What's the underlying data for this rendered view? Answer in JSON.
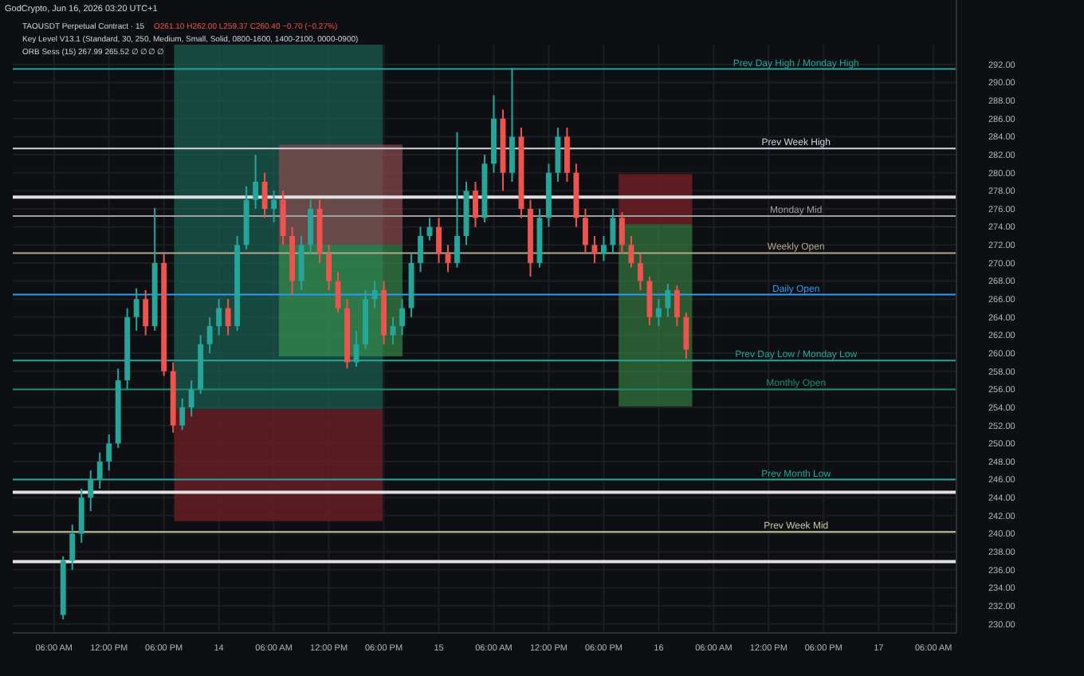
{
  "chart_data": {
    "type": "candlestick",
    "title": "TAOUSDT Perpetual Contract · 15",
    "subtitle": "GodCrypto, Jun 16, 2026 03:20 UTC+1",
    "annotations": [
      "O261.10 H262.00 L259.37 C260.40 −0.70 (−0.27%)",
      "Key Level V13.1 (Standard, 30, 250, Medium, Small, Solid, 0800-1600, 1400-2100, 0000-0900)",
      "ORB Sess (15) 267.99 265.52 ∅ ∅ ∅ ∅"
    ],
    "x": [
      "2026-06-13T07:00",
      "2026-06-13T08:00",
      "2026-06-13T09:00",
      "2026-06-13T10:00",
      "2026-06-13T11:00",
      "2026-06-13T12:00",
      "2026-06-13T13:00",
      "2026-06-13T14:00",
      "2026-06-13T15:00",
      "2026-06-13T16:00",
      "2026-06-13T17:00",
      "2026-06-13T18:00",
      "2026-06-13T19:00",
      "2026-06-13T20:00",
      "2026-06-13T21:00",
      "2026-06-13T22:00",
      "2026-06-13T23:00",
      "2026-06-14T00:00",
      "2026-06-14T01:00",
      "2026-06-14T02:00",
      "2026-06-14T03:00",
      "2026-06-14T04:00",
      "2026-06-14T05:00",
      "2026-06-14T06:00",
      "2026-06-14T07:00",
      "2026-06-14T08:00",
      "2026-06-14T09:00",
      "2026-06-14T10:00",
      "2026-06-14T11:00",
      "2026-06-14T12:00",
      "2026-06-14T13:00",
      "2026-06-14T14:00",
      "2026-06-14T15:00",
      "2026-06-14T16:00",
      "2026-06-14T17:00",
      "2026-06-14T18:00",
      "2026-06-14T19:00",
      "2026-06-14T20:00",
      "2026-06-14T21:00",
      "2026-06-14T22:00",
      "2026-06-14T23:00",
      "2026-06-15T00:00",
      "2026-06-15T01:00",
      "2026-06-15T02:00",
      "2026-06-15T03:00",
      "2026-06-15T04:00",
      "2026-06-15T05:00",
      "2026-06-15T06:00",
      "2026-06-15T07:00",
      "2026-06-15T08:00",
      "2026-06-15T09:00",
      "2026-06-15T10:00",
      "2026-06-15T11:00",
      "2026-06-15T12:00",
      "2026-06-15T13:00",
      "2026-06-15T14:00",
      "2026-06-15T15:00",
      "2026-06-15T16:00",
      "2026-06-15T17:00",
      "2026-06-15T18:00",
      "2026-06-15T19:00",
      "2026-06-15T20:00",
      "2026-06-15T21:00",
      "2026-06-15T22:00",
      "2026-06-15T23:00",
      "2026-06-16T00:00",
      "2026-06-16T01:00",
      "2026-06-16T02:00",
      "2026-06-16T03:00"
    ],
    "ohlc": [
      [
        231,
        237.5,
        230.5,
        237
      ],
      [
        237,
        241,
        236,
        240
      ],
      [
        240,
        245,
        239,
        244
      ],
      [
        244,
        247,
        242.5,
        246
      ],
      [
        246,
        249,
        245,
        248
      ],
      [
        248,
        251,
        247,
        250
      ],
      [
        250,
        258.3,
        249.5,
        257
      ],
      [
        257,
        265,
        256,
        264
      ],
      [
        264,
        267.2,
        262.5,
        266
      ],
      [
        266,
        267,
        262,
        263
      ],
      [
        263,
        276.1,
        262.5,
        270
      ],
      [
        270,
        271,
        257.5,
        258
      ],
      [
        258,
        259,
        251.2,
        252
      ],
      [
        252,
        255,
        251.5,
        254
      ],
      [
        254,
        257,
        253,
        256
      ],
      [
        256,
        262,
        255.5,
        261
      ],
      [
        261,
        264,
        260,
        263
      ],
      [
        263,
        266,
        262,
        265
      ],
      [
        265,
        266,
        262,
        263
      ],
      [
        263,
        273,
        262.5,
        272
      ],
      [
        272,
        278.5,
        271.5,
        277
      ],
      [
        277,
        282,
        276,
        279
      ],
      [
        279,
        280,
        275,
        276
      ],
      [
        276,
        278,
        274.5,
        277
      ],
      [
        277,
        278,
        272,
        273
      ],
      [
        273,
        274,
        266.5,
        268
      ],
      [
        268,
        273,
        267,
        272
      ],
      [
        272,
        277,
        271,
        276
      ],
      [
        276,
        277,
        270,
        271
      ],
      [
        271,
        272,
        267,
        268
      ],
      [
        268,
        269,
        264.5,
        265
      ],
      [
        265,
        266,
        258.3,
        259
      ],
      [
        259,
        262.5,
        258.5,
        261
      ],
      [
        261,
        267,
        260.5,
        266
      ],
      [
        266,
        268,
        265,
        267
      ],
      [
        267,
        268,
        261,
        262
      ],
      [
        262,
        264,
        261,
        263
      ],
      [
        263,
        266,
        262,
        265
      ],
      [
        265,
        271,
        264,
        270
      ],
      [
        270,
        274,
        269,
        273
      ],
      [
        273,
        275,
        272.5,
        274
      ],
      [
        274,
        275,
        270,
        271
      ],
      [
        271,
        272,
        269,
        270
      ],
      [
        270,
        284.5,
        269.5,
        273
      ],
      [
        273,
        279,
        272,
        278
      ],
      [
        278,
        279,
        274,
        275
      ],
      [
        275,
        282,
        274.5,
        281
      ],
      [
        281,
        288.6,
        280,
        286
      ],
      [
        286,
        287,
        278,
        280
      ],
      [
        280,
        291.6,
        279,
        284
      ],
      [
        284,
        285,
        275,
        276
      ],
      [
        276,
        277,
        268.5,
        270
      ],
      [
        270,
        276,
        269.5,
        275
      ],
      [
        275,
        281,
        274,
        280
      ],
      [
        280,
        285,
        279,
        284
      ],
      [
        284,
        285,
        279,
        280
      ],
      [
        280,
        281,
        274,
        275
      ],
      [
        275,
        276,
        271,
        272
      ],
      [
        272,
        273,
        270,
        271
      ],
      [
        271,
        273,
        270.2,
        272
      ],
      [
        272,
        276,
        271,
        275
      ],
      [
        275,
        275.6,
        271,
        272
      ],
      [
        272,
        273,
        269.5,
        270
      ],
      [
        270,
        271,
        267,
        268
      ],
      [
        268,
        268.5,
        263.1,
        264
      ],
      [
        264,
        266,
        263,
        265
      ],
      [
        265,
        267.7,
        264,
        267
      ],
      [
        267,
        267.5,
        263,
        264
      ],
      [
        264,
        264.5,
        259.4,
        260.4
      ]
    ],
    "xlim": [
      "2026-06-13T01:30",
      "2026-06-17T08:30"
    ],
    "xticks": [
      {
        "value": "2026-06-13T06:00",
        "label": "06:00 AM"
      },
      {
        "value": "2026-06-13T12:00",
        "label": "12:00 PM"
      },
      {
        "value": "2026-06-13T18:00",
        "label": "06:00 PM"
      },
      {
        "value": "2026-06-14T00:00",
        "label": "14"
      },
      {
        "value": "2026-06-14T06:00",
        "label": "06:00 AM"
      },
      {
        "value": "2026-06-14T12:00",
        "label": "12:00 PM"
      },
      {
        "value": "2026-06-14T18:00",
        "label": "06:00 PM"
      },
      {
        "value": "2026-06-15T00:00",
        "label": "15"
      },
      {
        "value": "2026-06-15T06:00",
        "label": "06:00 AM"
      },
      {
        "value": "2026-06-15T12:00",
        "label": "12:00 PM"
      },
      {
        "value": "2026-06-15T18:00",
        "label": "06:00 PM"
      },
      {
        "value": "2026-06-16T00:00",
        "label": "16"
      },
      {
        "value": "2026-06-16T06:00",
        "label": "06:00 AM"
      },
      {
        "value": "2026-06-16T12:00",
        "label": "12:00 PM"
      },
      {
        "value": "2026-06-16T18:00",
        "label": "06:00 PM"
      },
      {
        "value": "2026-06-17T00:00",
        "label": "17"
      },
      {
        "value": "2026-06-17T06:00",
        "label": "06:00 AM"
      }
    ],
    "ylim": [
      229,
      294.2
    ],
    "yticks": [
      {
        "value": 230,
        "label": "230.00"
      },
      {
        "value": 232,
        "label": "232.00"
      },
      {
        "value": 234,
        "label": "234.00"
      },
      {
        "value": 236,
        "label": "236.00"
      },
      {
        "value": 238,
        "label": "238.00"
      },
      {
        "value": 240,
        "label": "240.00"
      },
      {
        "value": 242,
        "label": "242.00"
      },
      {
        "value": 244,
        "label": "244.00"
      },
      {
        "value": 246,
        "label": "246.00"
      },
      {
        "value": 248,
        "label": "248.00"
      },
      {
        "value": 250,
        "label": "250.00"
      },
      {
        "value": 252,
        "label": "252.00"
      },
      {
        "value": 254,
        "label": "254.00"
      },
      {
        "value": 256,
        "label": "256.00"
      },
      {
        "value": 258,
        "label": "258.00"
      },
      {
        "value": 260,
        "label": "260.00"
      },
      {
        "value": 262,
        "label": "262.00"
      },
      {
        "value": 264,
        "label": "264.00"
      },
      {
        "value": 266,
        "label": "266.00"
      },
      {
        "value": 268,
        "label": "268.00"
      },
      {
        "value": 270,
        "label": "270.00"
      },
      {
        "value": 272,
        "label": "272.00"
      },
      {
        "value": 274,
        "label": "274.00"
      },
      {
        "value": 276,
        "label": "276.00"
      },
      {
        "value": 278,
        "label": "278.00"
      },
      {
        "value": 280,
        "label": "280.00"
      },
      {
        "value": 282,
        "label": "282.00"
      },
      {
        "value": 284,
        "label": "284.00"
      },
      {
        "value": 286,
        "label": "286.00"
      },
      {
        "value": 288,
        "label": "288.00"
      },
      {
        "value": 290,
        "label": "290.00"
      },
      {
        "value": 292,
        "label": "292.00"
      }
    ],
    "ref_lines": [
      {
        "axis": "y",
        "value": 291.5,
        "label": "Prev Day High / Monday High",
        "color": "#26a69a"
      },
      {
        "axis": "y",
        "value": 282.7,
        "label": "Prev Week High",
        "color": "#d1d4dc"
      },
      {
        "axis": "y",
        "value": 277.3,
        "label": null,
        "color": "#e0e0e0"
      },
      {
        "axis": "y",
        "value": 275.2,
        "label": "Monday Mid",
        "color": "#9e9e9e"
      },
      {
        "axis": "y",
        "value": 271.1,
        "label": "Weekly Open",
        "color": "#b0a890"
      },
      {
        "axis": "y",
        "value": 266.5,
        "label": "Daily Open",
        "color": "#2a9df4"
      },
      {
        "axis": "y",
        "value": 259.2,
        "label": "Prev Day Low / Monday Low",
        "color": "#26a69a"
      },
      {
        "axis": "y",
        "value": 256,
        "label": "Monthly Open",
        "color": "#1e8a6e"
      },
      {
        "axis": "y",
        "value": 246,
        "label": "Prev Month Low",
        "color": "#26a69a"
      },
      {
        "axis": "y",
        "value": 244.6,
        "label": null,
        "color": "#e0e0e0"
      },
      {
        "axis": "y",
        "value": 240.2,
        "label": "Prev Week Mid",
        "color": "#c8c8a0"
      },
      {
        "axis": "y",
        "value": 236.9,
        "label": null,
        "color": "#e0e0e0"
      }
    ],
    "grid": true
  }
}
